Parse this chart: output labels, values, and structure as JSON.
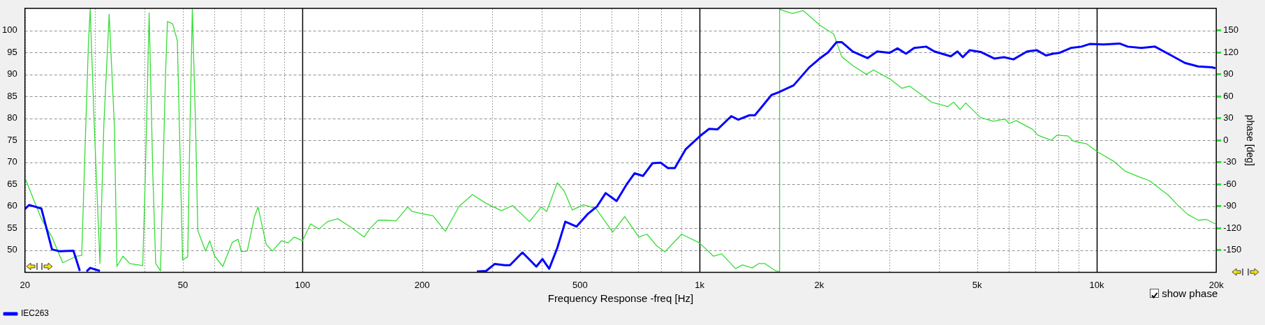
{
  "chart_data": {
    "type": "line",
    "xlabel": "Frequency Response -freq [Hz]",
    "y2label": "phase [deg]",
    "log": "x",
    "xlim": [
      20,
      20000
    ],
    "xticks": [
      20,
      {
        "value": 30,
        "label": null
      },
      {
        "value": 40,
        "label": null
      },
      50,
      {
        "value": 60,
        "label": null
      },
      {
        "value": 70,
        "label": null
      },
      {
        "value": 80,
        "label": null
      },
      {
        "value": 90,
        "label": null
      },
      100,
      200,
      {
        "value": 300,
        "label": null
      },
      {
        "value": 400,
        "label": null
      },
      500,
      {
        "value": 600,
        "label": null
      },
      {
        "value": 700,
        "label": null
      },
      {
        "value": 800,
        "label": null
      },
      {
        "value": 900,
        "label": null
      },
      {
        "value": 1000,
        "label": "1k"
      },
      {
        "value": 2000,
        "label": "2k"
      },
      {
        "value": 3000,
        "label": null
      },
      {
        "value": 4000,
        "label": null
      },
      {
        "value": 5000,
        "label": "5k"
      },
      {
        "value": 6000,
        "label": null
      },
      {
        "value": 7000,
        "label": null
      },
      {
        "value": 8000,
        "label": null
      },
      {
        "value": 9000,
        "label": null
      },
      {
        "value": 10000,
        "label": "10k"
      },
      {
        "value": 20000,
        "label": "20k"
      }
    ],
    "ylim": [
      45,
      105
    ],
    "yticks": [
      50,
      55,
      60,
      65,
      70,
      75,
      80,
      85,
      90,
      95,
      100
    ],
    "y2lim": [
      -180,
      180
    ],
    "y2ticks": [
      -150,
      -120,
      -90,
      -60,
      -30,
      0,
      30,
      60,
      90,
      120,
      150
    ],
    "grid": true,
    "legend": "bottom left",
    "marker": "none",
    "annotations": [
      "show phase"
    ],
    "series": [
      {
        "name": "IEC263",
        "color": "#0000ff",
        "x": [
          20,
          20.5,
          22,
          23.4,
          24.4,
          26.5,
          27.5,
          28,
          28.6,
          29.2,
          30.9,
          100,
          275,
          290,
          305,
          323,
          333,
          358,
          388,
          402,
          418,
          438,
          459,
          490,
          522,
          552,
          580,
          618,
          654,
          686,
          720,
          761,
          799,
          832,
          866,
          923,
          1000,
          1057,
          1110,
          1202,
          1251,
          1335,
          1378,
          1517,
          1580,
          1725,
          1885,
          2000,
          2107,
          2212,
          2283,
          2430,
          2650,
          2800,
          3010,
          3150,
          3310,
          3470,
          3720,
          3900,
          4290,
          4460,
          4600,
          4790,
          5100,
          5520,
          5840,
          6170,
          6680,
          7060,
          7450,
          7760,
          8070,
          8600,
          9150,
          9600,
          10400,
          11420,
          11970,
          12950,
          14020,
          15410,
          16680,
          18000,
          19500,
          19900
        ],
        "values": [
          59.4,
          60.3,
          59.5,
          50.2,
          49.8,
          49.9,
          45.3,
          null,
          45.2,
          46.0,
          45.3,
          null,
          45.2,
          45.3,
          46.9,
          46.6,
          46.6,
          49.5,
          46.3,
          48.0,
          45.8,
          50.5,
          56.5,
          55.4,
          58.2,
          60.0,
          63.0,
          61.2,
          64.9,
          67.5,
          66.9,
          69.8,
          69.9,
          68.7,
          68.7,
          73.0,
          75.9,
          77.6,
          77.5,
          80.5,
          79.7,
          80.7,
          80.7,
          85.3,
          85.9,
          87.5,
          91.5,
          93.5,
          95.0,
          97.3,
          97.3,
          95.2,
          93.7,
          95.2,
          94.9,
          95.9,
          94.7,
          96.0,
          96.3,
          95.2,
          94.1,
          95.2,
          93.9,
          95.5,
          95.1,
          93.6,
          93.9,
          93.4,
          95.2,
          95.5,
          94.3,
          94.7,
          94.9,
          96.0,
          96.3,
          96.9,
          96.8,
          97.0,
          96.3,
          96.0,
          96.3,
          94.3,
          92.6,
          91.8,
          91.6,
          91.4
        ]
      },
      {
        "color": "#33dd33",
        "axis": "y2",
        "x": [
          20.1,
          22,
          23.4,
          24.9,
          27,
          27.8,
          28.2,
          28.9,
          29.2,
          29.9,
          30.9,
          31.6,
          32.6,
          33.6,
          34.1,
          35.3,
          36.7,
          39.6,
          40.2,
          41.1,
          42,
          42.7,
          43.9,
          45.2,
          45.7,
          47.1,
          48.4,
          49.9,
          51.4,
          52.1,
          52.8,
          53.8,
          54.5,
          57,
          58.4,
          60.1,
          63,
          66.6,
          68.8,
          70.2,
          72.6,
          75.7,
          77.3,
          81,
          84,
          88.5,
          92,
          95.3,
          100,
          104.8,
          110,
          115.5,
          122.7,
          132,
          143,
          148,
          155,
          163,
          172,
          184,
          189,
          200,
          213,
          229,
          248,
          268,
          290,
          317,
          338,
          373,
          399,
          412,
          438,
          456,
          478,
          510,
          548,
          604,
          648,
          703,
          737,
          780,
          818,
          901,
          1000,
          1083,
          1137,
          1232,
          1282,
          1356,
          1411,
          1458,
          1554,
          1587,
          1590,
          1605,
          1711,
          1825,
          2009,
          2176,
          2280,
          2430,
          2630,
          2740,
          3030,
          3230,
          3380,
          3840,
          4220,
          4360,
          4530,
          4680,
          5100,
          5490,
          5880,
          6020,
          6270,
          6890,
          7110,
          7690,
          7940,
          8460,
          8730,
          9450,
          10000,
          11060,
          11780,
          12950,
          13570,
          15160,
          15900,
          16940,
          18030,
          18900,
          19900
        ],
        "values": [
          -54,
          -107,
          -132,
          -167,
          -158,
          -157,
          -49,
          131,
          179,
          20,
          -168,
          20,
          172,
          20,
          -172,
          -158,
          -168,
          -171,
          -49,
          174,
          -49,
          -168,
          -178,
          90,
          162,
          159,
          136,
          -163,
          -159,
          20,
          179,
          20,
          -123,
          -151,
          -137,
          -158,
          -172,
          -139,
          -135,
          -152,
          -151,
          -104,
          -91,
          -142,
          -151,
          -137,
          -140,
          -132,
          -137,
          -114,
          -121,
          -111,
          -107,
          -118,
          -132,
          -120,
          -109,
          -109,
          -110,
          -91,
          -97,
          -100,
          -103,
          -124,
          -90,
          -74,
          -86,
          -96,
          -89,
          -111,
          -91,
          -97,
          -58,
          -69,
          -95,
          -88,
          -93,
          -125,
          -104,
          -132,
          -128,
          -144,
          -152,
          -128,
          -140,
          -158,
          -155,
          -175,
          -170,
          -174,
          -168,
          -168,
          -178,
          -179,
          179,
          178,
          173,
          177,
          157,
          145,
          114,
          102,
          90,
          96,
          83,
          71,
          74,
          52,
          46,
          52,
          42,
          51,
          31,
          26,
          29,
          23,
          27,
          15,
          7,
          0,
          7,
          6,
          -1,
          -5,
          -15,
          -29,
          -42,
          -51,
          -55,
          -75,
          -87,
          -101,
          -109,
          -108,
          -114
        ]
      }
    ]
  }
}
